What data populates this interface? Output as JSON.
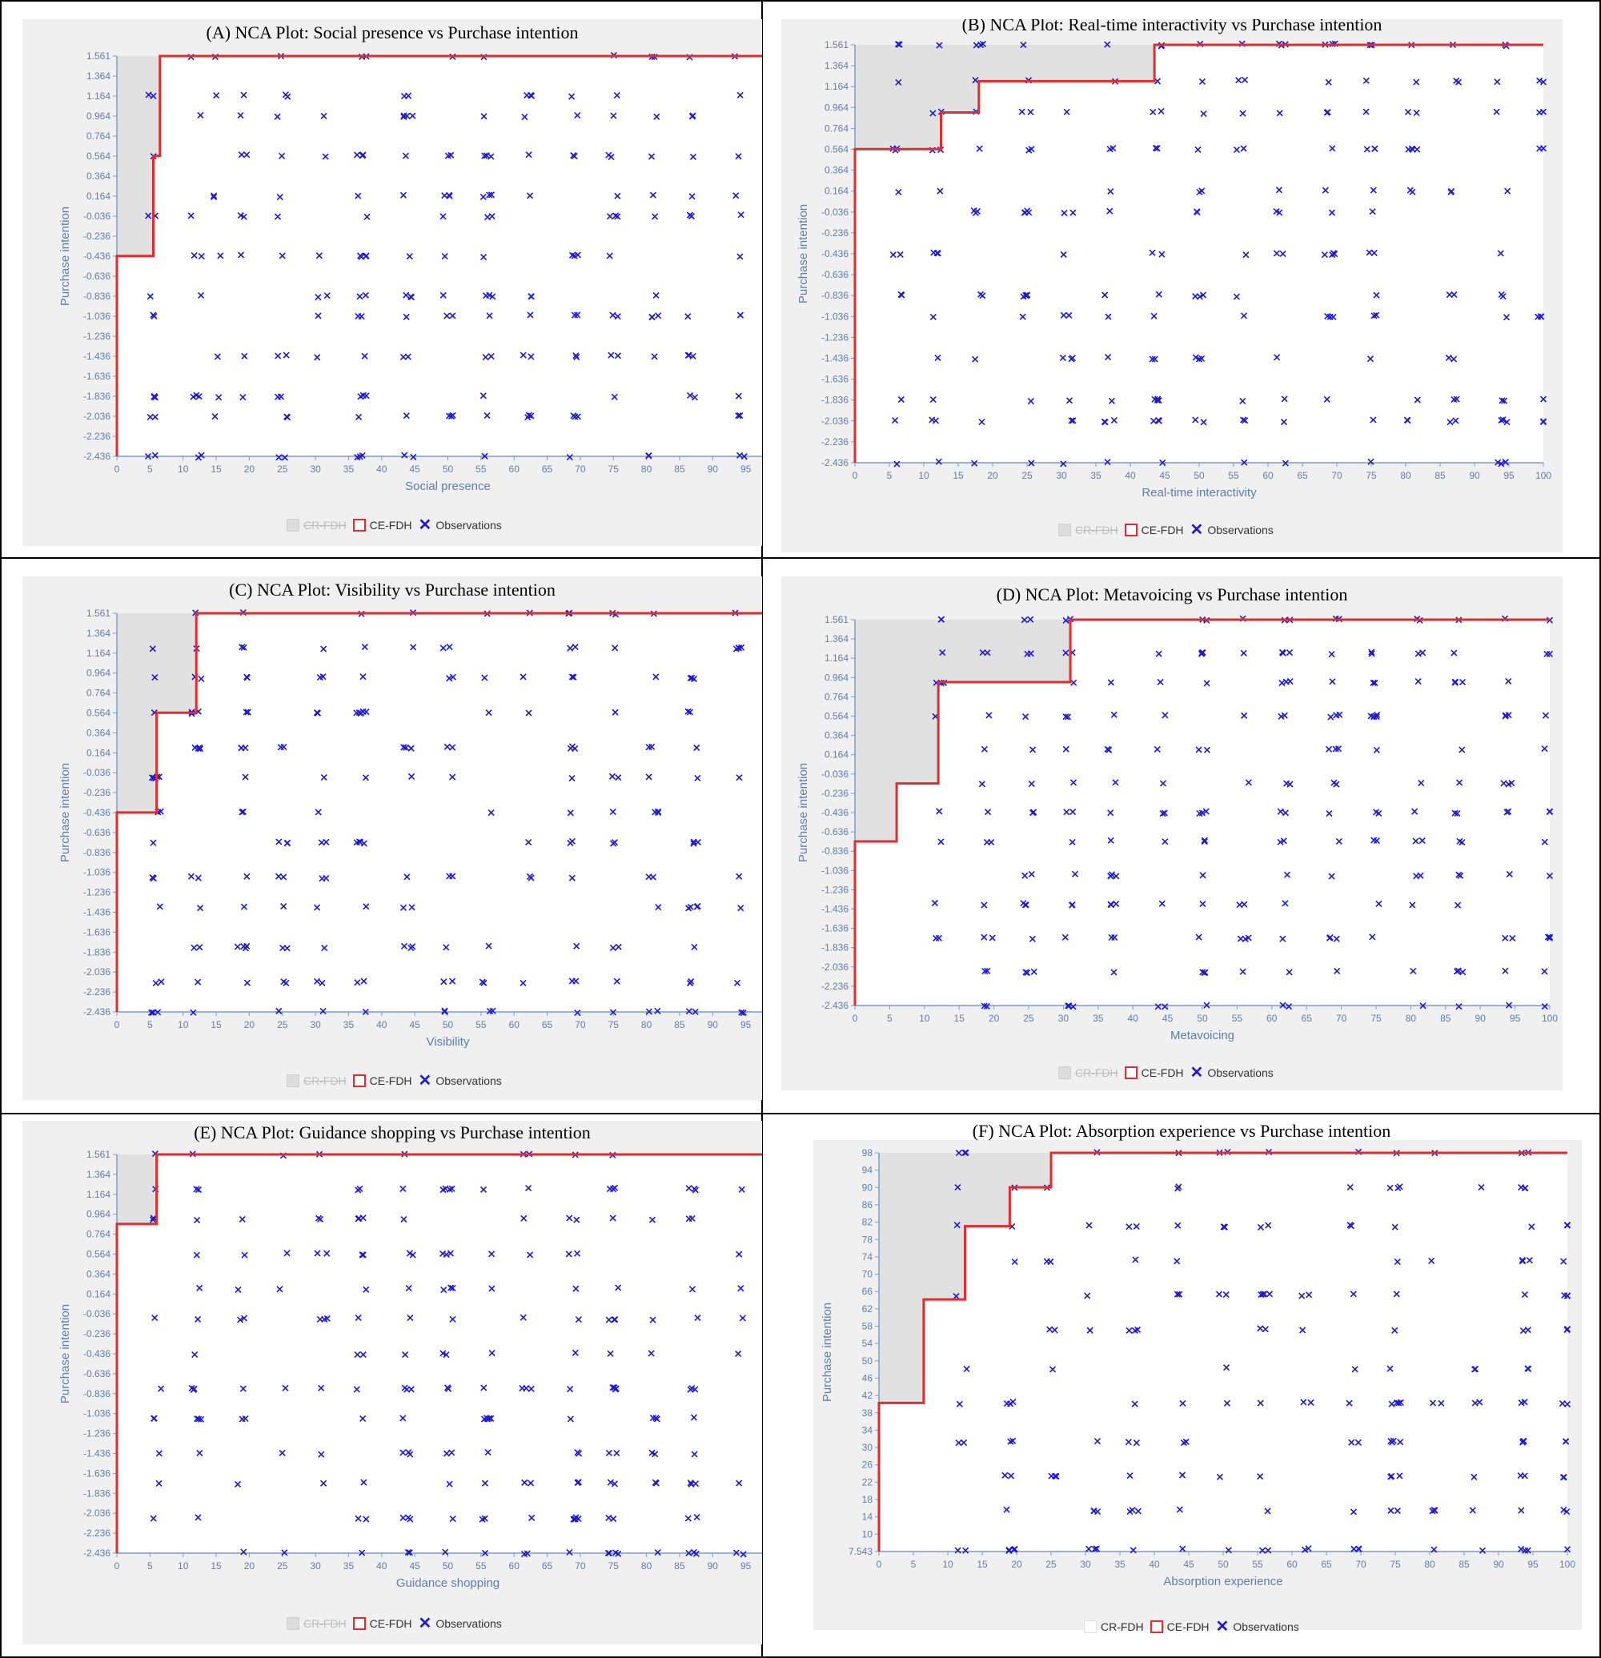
{
  "legend": {
    "cr": "CR-FDH",
    "ce": "CE-FDH",
    "obs": "Observations"
  },
  "colors": {
    "ceiling": "#e52b2b",
    "obs": "#1a1ad6",
    "axis": "#7b9cc6",
    "tick": "#5a7fb0",
    "shade": "#dcdcdc",
    "bg": "#f0f0f0"
  },
  "charts": [
    {
      "id": "A",
      "chart_data": {
        "type": "scatter",
        "title": "(A) NCA Plot: Social presence vs Purchase intention",
        "xlabel": "Social presence",
        "ylabel": "Purchase intention",
        "xlim": [
          0,
          100
        ],
        "ylim": [
          -2.436,
          1.561
        ],
        "xticks": [
          "0",
          "5",
          "10",
          "15",
          "20",
          "25",
          "30",
          "35",
          "40",
          "45",
          "50",
          "55",
          "60",
          "65",
          "70",
          "75",
          "80",
          "85",
          "90",
          "95",
          "100"
        ],
        "yticks": [
          "1.561",
          "1.364",
          "1.164",
          "0.964",
          "0.764",
          "0.564",
          "0.364",
          "0.164",
          "-0.036",
          "-0.236",
          "-0.436",
          "-0.636",
          "-0.836",
          "-1.036",
          "-1.236",
          "-1.436",
          "-1.636",
          "-1.836",
          "-2.036",
          "-2.236",
          "-2.436"
        ],
        "ceiling_ce_fdh": [
          [
            0,
            -2.436
          ],
          [
            0,
            -0.436
          ],
          [
            5.5,
            -0.436
          ],
          [
            5.5,
            0.564
          ],
          [
            6.5,
            0.564
          ],
          [
            6.5,
            1.561
          ],
          [
            100,
            1.561
          ]
        ],
        "observations": {
          "seed": 11,
          "count": 240,
          "cols": [
            5.5,
            12,
            15,
            19,
            25,
            31,
            37,
            44,
            50,
            56,
            62,
            69,
            75,
            81,
            87,
            94,
            100
          ],
          "rows": [
            1.561,
            1.164,
            0.964,
            0.564,
            0.164,
            -0.036,
            -0.436,
            -0.836,
            -1.036,
            -1.436,
            -1.836,
            -2.036,
            -2.436
          ]
        }
      },
      "legend_cr_muted": true
    },
    {
      "id": "B",
      "chart_data": {
        "type": "scatter",
        "title": "(B) NCA Plot: Real-time interactivity vs Purchase intention",
        "xlabel": "Real-time interactivity",
        "ylabel": "Purchase intention",
        "xlim": [
          0,
          100
        ],
        "ylim": [
          -2.436,
          1.561
        ],
        "xticks": [
          "0",
          "5",
          "10",
          "15",
          "20",
          "25",
          "30",
          "35",
          "40",
          "45",
          "50",
          "55",
          "60",
          "65",
          "70",
          "75",
          "80",
          "85",
          "90",
          "95",
          "100"
        ],
        "yticks": [
          "1.561",
          "1.364",
          "1.164",
          "0.964",
          "0.764",
          "0.564",
          "0.364",
          "0.164",
          "-0.036",
          "-0.236",
          "-0.436",
          "-0.636",
          "-0.836",
          "-1.036",
          "-1.236",
          "-1.436",
          "-1.636",
          "-1.836",
          "-2.036",
          "-2.236",
          "-2.436"
        ],
        "ceiling_ce_fdh": [
          [
            0,
            -2.436
          ],
          [
            0,
            0.564
          ],
          [
            12.5,
            0.564
          ],
          [
            12.5,
            0.914
          ],
          [
            18,
            0.914
          ],
          [
            18,
            1.214
          ],
          [
            43.5,
            1.214
          ],
          [
            43.5,
            1.561
          ],
          [
            100,
            1.561
          ]
        ],
        "observations": {
          "seed": 23,
          "count": 240,
          "cols": [
            6,
            12,
            18,
            25,
            31,
            37,
            44,
            50,
            56,
            62,
            69,
            75,
            81,
            87,
            94,
            100
          ],
          "rows": [
            1.561,
            1.214,
            0.914,
            0.564,
            0.164,
            -0.036,
            -0.436,
            -0.836,
            -1.036,
            -1.436,
            -1.836,
            -2.036,
            -2.436
          ]
        }
      },
      "legend_cr_muted": true
    },
    {
      "id": "C",
      "chart_data": {
        "type": "scatter",
        "title": "(C) NCA Plot: Visibility vs Purchase intention",
        "xlabel": "Visibility",
        "ylabel": "Purchase intention",
        "xlim": [
          0,
          100
        ],
        "ylim": [
          -2.436,
          1.561
        ],
        "xticks": [
          "0",
          "5",
          "10",
          "15",
          "20",
          "25",
          "30",
          "35",
          "40",
          "45",
          "50",
          "55",
          "60",
          "65",
          "70",
          "75",
          "80",
          "85",
          "90",
          "95",
          "100"
        ],
        "yticks": [
          "1.561",
          "1.364",
          "1.164",
          "0.964",
          "0.764",
          "0.564",
          "0.364",
          "0.164",
          "-0.036",
          "-0.236",
          "-0.436",
          "-0.636",
          "-0.836",
          "-1.036",
          "-1.236",
          "-1.436",
          "-1.636",
          "-1.836",
          "-2.036",
          "-2.236",
          "-2.436"
        ],
        "ceiling_ce_fdh": [
          [
            0,
            -2.436
          ],
          [
            0,
            -0.436
          ],
          [
            6,
            -0.436
          ],
          [
            6,
            0.564
          ],
          [
            12,
            0.564
          ],
          [
            12,
            1.561
          ],
          [
            100,
            1.561
          ]
        ],
        "observations": {
          "seed": 37,
          "count": 230,
          "cols": [
            6,
            12,
            19,
            25,
            31,
            37,
            44,
            50,
            56,
            62,
            69,
            75,
            81,
            87,
            94,
            100
          ],
          "rows": [
            1.561,
            1.214,
            0.914,
            0.564,
            0.214,
            -0.086,
            -0.436,
            -0.736,
            -1.086,
            -1.386,
            -1.786,
            -2.136,
            -2.436
          ]
        }
      },
      "legend_cr_muted": true
    },
    {
      "id": "D",
      "chart_data": {
        "type": "scatter",
        "title": "(D) NCA Plot: Metavoicing vs Purchase intention",
        "xlabel": "Metavoicing",
        "ylabel": "Purchase intention",
        "xlim": [
          0,
          100
        ],
        "ylim": [
          -2.436,
          1.561
        ],
        "xticks": [
          "0",
          "5",
          "10",
          "15",
          "20",
          "25",
          "30",
          "35",
          "40",
          "45",
          "50",
          "55",
          "60",
          "65",
          "70",
          "75",
          "80",
          "85",
          "90",
          "95",
          "100"
        ],
        "yticks": [
          "1.561",
          "1.364",
          "1.164",
          "0.964",
          "0.764",
          "0.564",
          "0.364",
          "0.164",
          "-0.036",
          "-0.236",
          "-0.436",
          "-0.636",
          "-0.836",
          "-1.036",
          "-1.236",
          "-1.436",
          "-1.636",
          "-1.836",
          "-2.036",
          "-2.236",
          "-2.436"
        ],
        "ceiling_ce_fdh": [
          [
            0,
            -2.436
          ],
          [
            0,
            -0.736
          ],
          [
            6,
            -0.736
          ],
          [
            6,
            -0.136
          ],
          [
            12,
            -0.136
          ],
          [
            12,
            0.914
          ],
          [
            31,
            0.914
          ],
          [
            31,
            1.561
          ],
          [
            100,
            1.561
          ]
        ],
        "observations": {
          "seed": 53,
          "count": 240,
          "cols": [
            12,
            19,
            25,
            31,
            37,
            44,
            50,
            56,
            62,
            69,
            75,
            81,
            87,
            94,
            100
          ],
          "rows": [
            1.561,
            1.214,
            0.914,
            0.564,
            0.214,
            -0.136,
            -0.436,
            -0.736,
            -1.086,
            -1.386,
            -1.736,
            -2.086,
            -2.436
          ]
        }
      },
      "legend_cr_muted": true
    },
    {
      "id": "E",
      "chart_data": {
        "type": "scatter",
        "title": "(E) NCA Plot: Guidance shopping vs Purchase intention",
        "xlabel": "Guidance shopping",
        "ylabel": "Purchase intention",
        "xlim": [
          0,
          100
        ],
        "ylim": [
          -2.436,
          1.561
        ],
        "xticks": [
          "0",
          "5",
          "10",
          "15",
          "20",
          "25",
          "30",
          "35",
          "40",
          "45",
          "50",
          "55",
          "60",
          "65",
          "70",
          "75",
          "80",
          "85",
          "90",
          "95",
          "100"
        ],
        "yticks": [
          "1.561",
          "1.364",
          "1.164",
          "0.964",
          "0.764",
          "0.564",
          "0.364",
          "0.164",
          "-0.036",
          "-0.236",
          "-0.436",
          "-0.636",
          "-0.836",
          "-1.036",
          "-1.236",
          "-1.436",
          "-1.636",
          "-1.836",
          "-2.036",
          "-2.236",
          "-2.436"
        ],
        "ceiling_ce_fdh": [
          [
            0,
            -2.436
          ],
          [
            0,
            0.864
          ],
          [
            6,
            0.864
          ],
          [
            6,
            1.561
          ],
          [
            100,
            1.561
          ]
        ],
        "observations": {
          "seed": 71,
          "count": 240,
          "cols": [
            6,
            12,
            19,
            25,
            31,
            37,
            44,
            50,
            56,
            62,
            69,
            75,
            81,
            87,
            94,
            100
          ],
          "rows": [
            1.561,
            1.214,
            0.914,
            0.564,
            0.214,
            -0.086,
            -0.436,
            -0.786,
            -1.086,
            -1.436,
            -1.736,
            -2.086,
            -2.436
          ]
        }
      },
      "legend_cr_muted": true
    },
    {
      "id": "F",
      "chart_data": {
        "type": "scatter",
        "title": "(F) NCA Plot: Absorption experience vs Purchase intention",
        "xlabel": "Absorption experience",
        "ylabel": "Purchase intention",
        "xlim": [
          0,
          100
        ],
        "ylim": [
          7.543,
          100
        ],
        "xticks": [
          "0",
          "5",
          "10",
          "15",
          "20",
          "25",
          "30",
          "35",
          "40",
          "45",
          "50",
          "55",
          "60",
          "65",
          "70",
          "75",
          "80",
          "85",
          "90",
          "95",
          "100"
        ],
        "yticks": [
          "98",
          "94",
          "90",
          "86",
          "82",
          "78",
          "74",
          "70",
          "66",
          "62",
          "58",
          "54",
          "50",
          "46",
          "42",
          "38",
          "34",
          "30",
          "26",
          "22",
          "18",
          "14",
          "10",
          "7.543"
        ],
        "ceiling_ce_fdh": [
          [
            0,
            7.543
          ],
          [
            0,
            42
          ],
          [
            6.5,
            42
          ],
          [
            6.5,
            66
          ],
          [
            12.5,
            66
          ],
          [
            12.5,
            83
          ],
          [
            19,
            83
          ],
          [
            19,
            92
          ],
          [
            25,
            92
          ],
          [
            25,
            100
          ],
          [
            100,
            100
          ]
        ],
        "observations": {
          "seed": 97,
          "count": 200,
          "cols": [
            12,
            19,
            25,
            31,
            37,
            44,
            50,
            56,
            62,
            69,
            75,
            81,
            87,
            94,
            100
          ],
          "rows": [
            100,
            92,
            83,
            75,
            67,
            59,
            50,
            42,
            33,
            25,
            17,
            8
          ]
        }
      },
      "legend_cr_muted": false
    }
  ]
}
